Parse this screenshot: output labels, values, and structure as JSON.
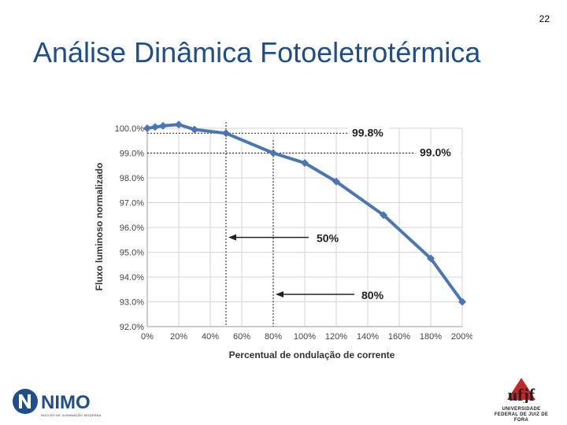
{
  "slide": {
    "number": "22",
    "title": "Análise Dinâmica Fotoeletrotérmica"
  },
  "chart_data": {
    "type": "line",
    "xlabel": "Percentual de ondulação de corrente",
    "ylabel": "Fluxo luminoso normalizado",
    "xlim": [
      0,
      200
    ],
    "ylim": [
      92,
      100
    ],
    "x_ticks": [
      "0%",
      "20%",
      "40%",
      "60%",
      "80%",
      "100%",
      "120%",
      "140%",
      "160%",
      "180%",
      "200%"
    ],
    "y_ticks": [
      "92.0%",
      "93.0%",
      "94.0%",
      "95.0%",
      "96.0%",
      "97.0%",
      "98.0%",
      "99.0%",
      "100.0%"
    ],
    "grid": true,
    "series": [
      {
        "x": [
          0,
          5,
          10,
          20,
          30,
          50,
          80,
          100,
          120,
          150,
          180,
          200
        ],
        "y": [
          100.0,
          100.05,
          100.1,
          100.15,
          99.95,
          99.8,
          99.0,
          98.6,
          97.85,
          96.5,
          94.75,
          93.0
        ]
      }
    ],
    "annotations": [
      {
        "text": "99.8%",
        "y": 99.8
      },
      {
        "text": "99.0%",
        "y": 99.0
      },
      {
        "text": "50%",
        "x": 50
      },
      {
        "text": "80%",
        "x": 80
      }
    ]
  },
  "logos": {
    "nimo": {
      "text": "NIMO",
      "subtitle": "NÚCLEO DE ILUMINAÇÃO MODERNA"
    },
    "ufjf": {
      "text": "ufjf",
      "line1": "UNIVERSIDADE",
      "line2": "FEDERAL DE JUIZ DE FORA"
    },
    "colors": {
      "blue": "#1f4e8c",
      "red": "#c0282a",
      "line": "#4a76b4"
    }
  }
}
